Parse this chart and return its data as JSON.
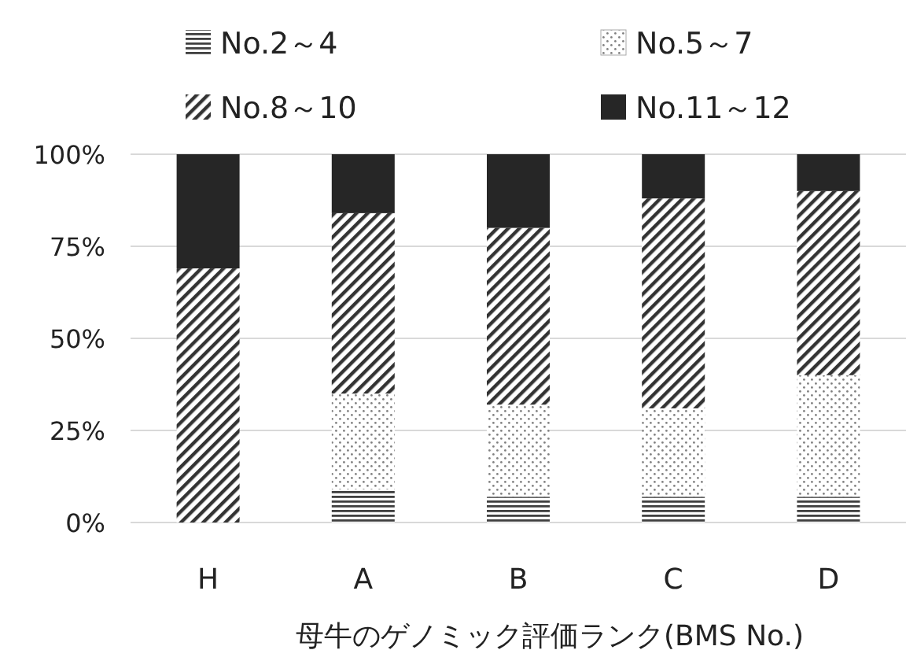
{
  "chart_data": {
    "type": "bar",
    "stacked": true,
    "xlabel": "母牛のゲノミック評価ランク(BMS No.)",
    "categories": [
      "H",
      "A",
      "B",
      "C",
      "D"
    ],
    "series": [
      {
        "name": "No.2～4",
        "color": "#404040",
        "values": [
          0,
          9,
          7,
          7,
          7
        ]
      },
      {
        "name": "No.5～7",
        "color": "#808080",
        "values": [
          0,
          26,
          25,
          24,
          33
        ]
      },
      {
        "name": "No.8～10",
        "color": "#333333",
        "values": [
          69,
          49,
          48,
          57,
          50
        ]
      },
      {
        "name": "No.11～12",
        "color": "#262626",
        "values": [
          31,
          16,
          20,
          12,
          10
        ]
      }
    ],
    "ylim": [
      0,
      100
    ],
    "yticks": [
      {
        "value": 0,
        "label": "0%"
      },
      {
        "value": 25,
        "label": "25%"
      },
      {
        "value": 50,
        "label": "50%"
      },
      {
        "value": 75,
        "label": "75%"
      },
      {
        "value": 100,
        "label": "100%"
      }
    ],
    "grid": "y",
    "legend": "top"
  }
}
